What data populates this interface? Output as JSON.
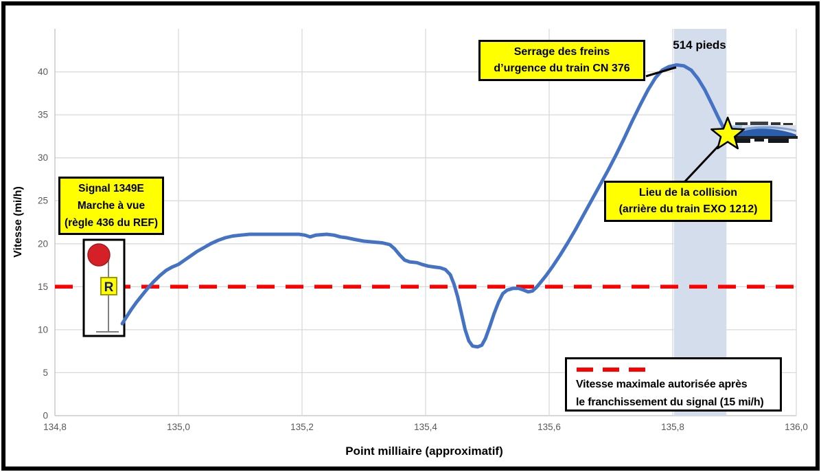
{
  "chart_data": {
    "type": "line",
    "title": "",
    "xlabel": "Point milliaire (approximatif)",
    "ylabel": "Vitesse (mi/h)",
    "xlim": [
      134.8,
      136.0
    ],
    "ylim": [
      0,
      45
    ],
    "grid": true,
    "x_ticks": [
      {
        "v": 134.8,
        "label": "134,8"
      },
      {
        "v": 135.0,
        "label": "135,0"
      },
      {
        "v": 135.2,
        "label": "135,2"
      },
      {
        "v": 135.4,
        "label": "135,4"
      },
      {
        "v": 135.6,
        "label": "135,6"
      },
      {
        "v": 135.8,
        "label": "135,8"
      },
      {
        "v": 136.0,
        "label": "136,0"
      }
    ],
    "y_ticks": [
      {
        "v": 0,
        "label": "0"
      },
      {
        "v": 5,
        "label": "5"
      },
      {
        "v": 10,
        "label": "10"
      },
      {
        "v": 15,
        "label": "15"
      },
      {
        "v": 20,
        "label": "20"
      },
      {
        "v": 25,
        "label": "25"
      },
      {
        "v": 30,
        "label": "30"
      },
      {
        "v": 35,
        "label": "35"
      },
      {
        "v": 40,
        "label": "40"
      }
    ],
    "series": [
      {
        "color": "#4472C4",
        "points": [
          [
            134.909,
            10.7
          ],
          [
            134.916,
            11.5
          ],
          [
            134.924,
            12.4
          ],
          [
            134.932,
            13.2
          ],
          [
            134.941,
            14.0
          ],
          [
            134.95,
            14.8
          ],
          [
            134.96,
            15.6
          ],
          [
            134.97,
            16.3
          ],
          [
            134.98,
            16.9
          ],
          [
            134.99,
            17.3
          ],
          [
            135.0,
            17.6
          ],
          [
            135.01,
            18.1
          ],
          [
            135.02,
            18.6
          ],
          [
            135.03,
            19.1
          ],
          [
            135.04,
            19.5
          ],
          [
            135.052,
            20.0
          ],
          [
            135.064,
            20.4
          ],
          [
            135.076,
            20.7
          ],
          [
            135.088,
            20.9
          ],
          [
            135.1,
            21.0
          ],
          [
            135.115,
            21.1
          ],
          [
            135.135,
            21.1
          ],
          [
            135.155,
            21.1
          ],
          [
            135.175,
            21.1
          ],
          [
            135.195,
            21.1
          ],
          [
            135.205,
            21.0
          ],
          [
            135.213,
            20.8
          ],
          [
            135.222,
            21.0
          ],
          [
            135.24,
            21.1
          ],
          [
            135.252,
            21.0
          ],
          [
            135.262,
            20.8
          ],
          [
            135.272,
            20.7
          ],
          [
            135.285,
            20.5
          ],
          [
            135.3,
            20.3
          ],
          [
            135.315,
            20.2
          ],
          [
            135.33,
            20.1
          ],
          [
            135.342,
            19.9
          ],
          [
            135.35,
            19.4
          ],
          [
            135.358,
            18.7
          ],
          [
            135.366,
            18.1
          ],
          [
            135.374,
            17.9
          ],
          [
            135.386,
            17.8
          ],
          [
            135.394,
            17.6
          ],
          [
            135.404,
            17.4
          ],
          [
            135.414,
            17.3
          ],
          [
            135.424,
            17.2
          ],
          [
            135.432,
            17.0
          ],
          [
            135.44,
            16.4
          ],
          [
            135.446,
            15.3
          ],
          [
            135.452,
            13.8
          ],
          [
            135.458,
            11.9
          ],
          [
            135.464,
            10.0
          ],
          [
            135.47,
            8.7
          ],
          [
            135.476,
            8.1
          ],
          [
            135.484,
            8.0
          ],
          [
            135.491,
            8.2
          ],
          [
            135.497,
            9.0
          ],
          [
            135.504,
            10.4
          ],
          [
            135.511,
            11.9
          ],
          [
            135.518,
            13.2
          ],
          [
            135.525,
            14.2
          ],
          [
            135.532,
            14.6
          ],
          [
            135.541,
            14.8
          ],
          [
            135.551,
            14.8
          ],
          [
            135.559,
            14.6
          ],
          [
            135.566,
            14.4
          ],
          [
            135.573,
            14.5
          ],
          [
            135.579,
            14.9
          ],
          [
            135.586,
            15.5
          ],
          [
            135.595,
            16.3
          ],
          [
            135.606,
            17.4
          ],
          [
            135.618,
            18.7
          ],
          [
            135.63,
            20.1
          ],
          [
            135.643,
            21.7
          ],
          [
            135.656,
            23.4
          ],
          [
            135.669,
            25.1
          ],
          [
            135.682,
            26.8
          ],
          [
            135.695,
            28.5
          ],
          [
            135.708,
            30.3
          ],
          [
            135.721,
            32.2
          ],
          [
            135.734,
            34.2
          ],
          [
            135.747,
            36.1
          ],
          [
            135.76,
            37.9
          ],
          [
            135.772,
            39.3
          ],
          [
            135.783,
            40.2
          ],
          [
            135.794,
            40.6
          ],
          [
            135.806,
            40.8
          ],
          [
            135.818,
            40.7
          ],
          [
            135.83,
            40.2
          ],
          [
            135.841,
            39.2
          ],
          [
            135.852,
            37.9
          ],
          [
            135.863,
            36.3
          ],
          [
            135.873,
            34.8
          ],
          [
            135.882,
            33.5
          ],
          [
            135.889,
            32.7
          ]
        ]
      }
    ],
    "reference_line": {
      "value": 15,
      "color": "#FF0000",
      "style": "dashed"
    },
    "highlight_band": {
      "x_start": 135.802,
      "x_end": 135.887,
      "color": "#D3DDEC",
      "label": "514 pieds"
    },
    "collision_point": {
      "x": 135.889,
      "y": 32.7,
      "marker": "star",
      "marker_color": "#FFFF00"
    }
  },
  "annotations": {
    "signal_box": {
      "lines": [
        "Signal 1349E",
        "Marche à vue",
        "(règle 436 du REF)"
      ],
      "bg": "#FFFF00"
    },
    "brakes_box": {
      "lines": [
        "Serrage des freins",
        "d’urgence du train CN 376"
      ],
      "bg": "#FFFF00"
    },
    "collision_box": {
      "lines": [
        "Lieu de la collision",
        "(arrière du train EXO 1212)"
      ],
      "bg": "#FFFF00"
    },
    "legend": {
      "lines": [
        "Vitesse maximale autorisée après",
        "le franchissement du signal (15 mi/h)"
      ],
      "dash_color": "#FF0000"
    },
    "signal_icon": {
      "letter": "R",
      "light_color": "#D62027",
      "plate_color": "#FFFF00"
    }
  }
}
